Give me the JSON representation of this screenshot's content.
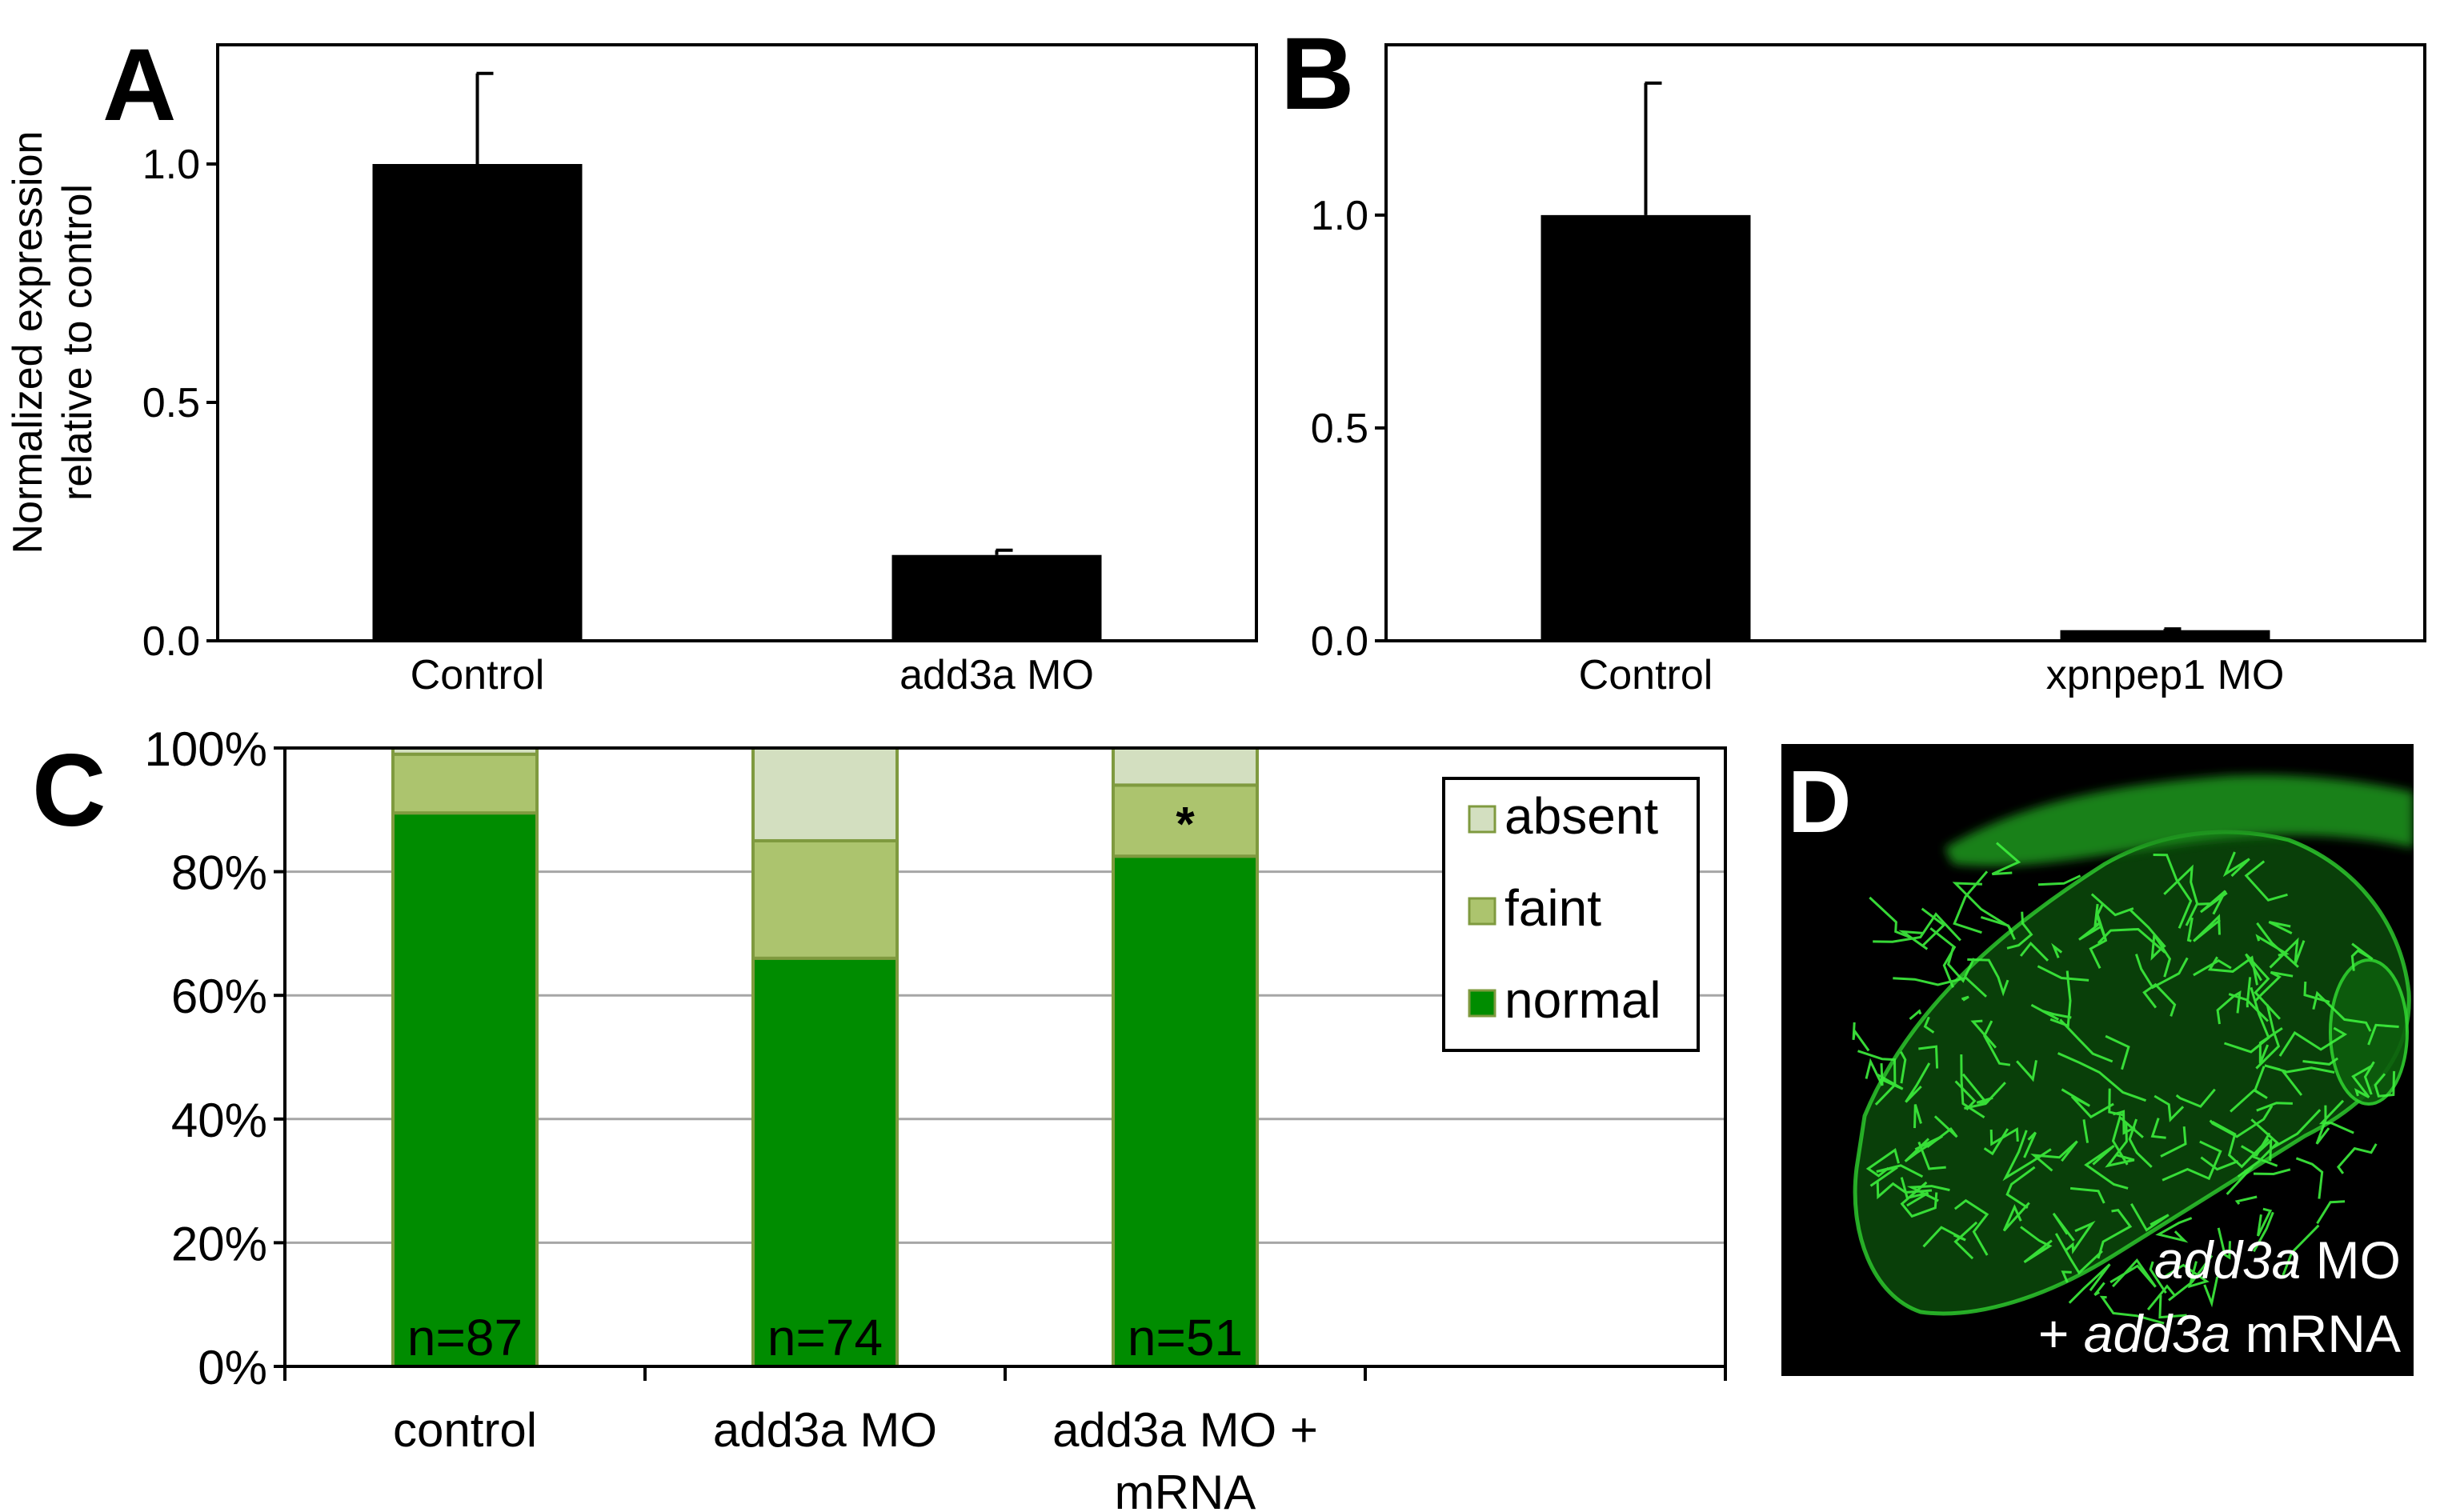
{
  "panels": {
    "a": {
      "letter": "A"
    },
    "b": {
      "letter": "B"
    },
    "c": {
      "letter": "C"
    },
    "d": {
      "letter": "D",
      "caption_line1_italic": "add3a",
      "caption_line1_rest": " MO",
      "caption_line2_prefix": "+ ",
      "caption_line2_italic": "add3a",
      "caption_line2_rest": " mRNA"
    }
  },
  "chart_data": [
    {
      "panel": "A",
      "type": "bar",
      "categories": [
        "Control",
        "add3a MO"
      ],
      "values": [
        1.0,
        0.18
      ],
      "errors": [
        0.19,
        0.01
      ],
      "ylabel": "Normalized expression\nrelative to control",
      "ylabel_lines": [
        "Normalized expression",
        "relative to control"
      ],
      "ylim": [
        0,
        1.25
      ],
      "yticks": [
        0.0,
        0.5,
        1.0
      ],
      "ytick_labels": [
        "0.0",
        "0.5",
        "1.0"
      ],
      "bar_color": "#000000",
      "grid": false
    },
    {
      "panel": "B",
      "type": "bar",
      "categories": [
        "Control",
        "xpnpep1 MO"
      ],
      "values": [
        1.0,
        0.025
      ],
      "errors": [
        0.31,
        0.003
      ],
      "ylim": [
        0,
        1.4
      ],
      "yticks": [
        0.0,
        0.5,
        1.0
      ],
      "ytick_labels": [
        "0.0",
        "0.5",
        "1.0"
      ],
      "bar_color": "#000000",
      "grid": false
    },
    {
      "panel": "C",
      "type": "bar",
      "stacked": true,
      "categories": [
        "control",
        "add3a MO",
        "add3a MO + mRNA"
      ],
      "category_lines": [
        [
          "control"
        ],
        [
          "add3a MO"
        ],
        [
          "add3a MO +",
          "mRNA"
        ]
      ],
      "series": [
        {
          "name": "normal",
          "values": [
            89.5,
            66,
            82.5
          ],
          "color": "#008c00"
        },
        {
          "name": "faint",
          "values": [
            9.5,
            19,
            11.5
          ],
          "color": "#acc46e"
        },
        {
          "name": "absent",
          "values": [
            1,
            15,
            6
          ],
          "color": "#d3dfc0"
        }
      ],
      "counts": [
        "n=87",
        "n=74",
        "n=51"
      ],
      "annotations": [
        {
          "category": "add3a MO + mRNA",
          "text": "*"
        }
      ],
      "ylim": [
        0,
        100
      ],
      "yticks": [
        0,
        20,
        40,
        60,
        80,
        100
      ],
      "ytick_labels": [
        "0%",
        "20%",
        "40%",
        "60%",
        "80%",
        "100%"
      ],
      "grid": true,
      "legend_position": "top-right",
      "legend_order": [
        "absent",
        "faint",
        "normal"
      ]
    }
  ],
  "colors": {
    "bar_border": "#7f9a3f",
    "grid": "#a6a6a6",
    "micro_green": "#2fd12f"
  }
}
